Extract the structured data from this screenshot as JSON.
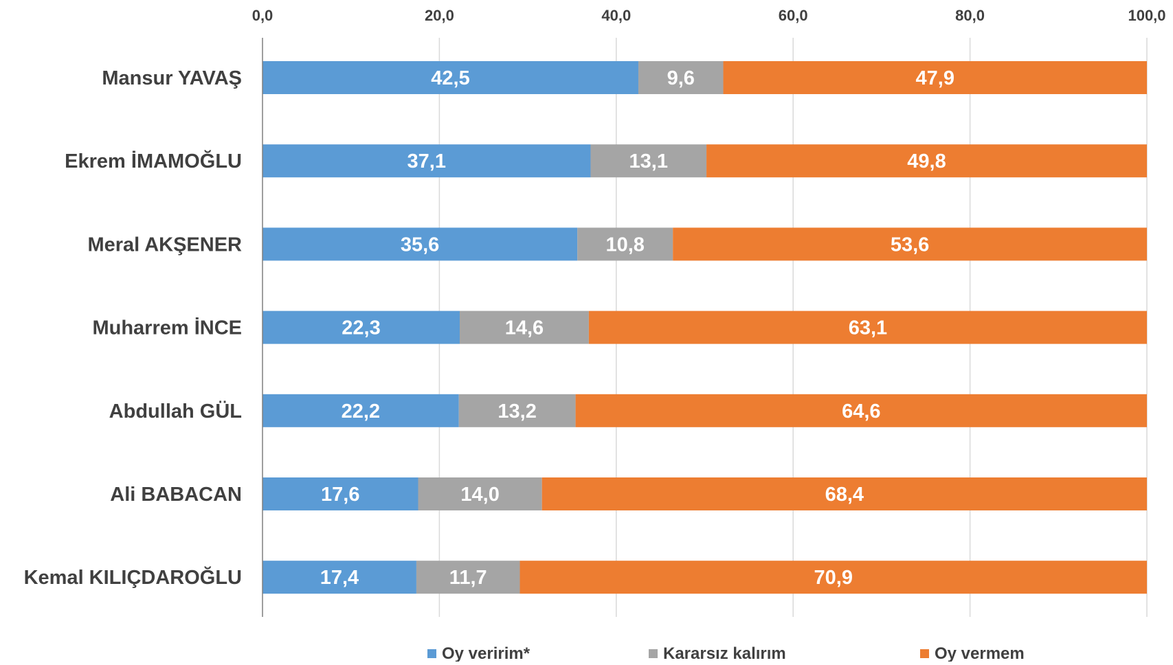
{
  "chart_data": {
    "type": "bar",
    "orientation": "horizontal",
    "stacked": true,
    "xlim": [
      0,
      100
    ],
    "x_ticks": [
      0,
      20,
      40,
      60,
      80,
      100
    ],
    "x_tick_labels": [
      "0,0",
      "20,0",
      "40,0",
      "60,0",
      "80,0",
      "100,0"
    ],
    "x_axis_position": "top",
    "grid": "vertical",
    "legend_position": "bottom",
    "categories": [
      "Mansur YAVAŞ",
      "Ekrem İMAMOĞLU",
      "Meral AKŞENER",
      "Muharrem İNCE",
      "Abdullah GÜL",
      "Ali BABACAN",
      "Kemal KILIÇDAROĞLU"
    ],
    "series": [
      {
        "name": "Oy veririm*",
        "color": "#5B9BD5",
        "values": [
          42.5,
          37.1,
          35.6,
          22.3,
          22.2,
          17.6,
          17.4
        ],
        "labels": [
          "42,5",
          "37,1",
          "35,6",
          "22,3",
          "22,2",
          "17,6",
          "17,4"
        ]
      },
      {
        "name": "Kararsız kalırım",
        "color": "#A5A5A5",
        "values": [
          9.6,
          13.1,
          10.8,
          14.6,
          13.2,
          14.0,
          11.7
        ],
        "labels": [
          "9,6",
          "13,1",
          "10,8",
          "14,6",
          "13,2",
          "14,0",
          "11,7"
        ]
      },
      {
        "name": "Oy vermem",
        "color": "#ED7D31",
        "values": [
          47.9,
          49.8,
          53.6,
          63.1,
          64.6,
          68.4,
          70.9
        ],
        "labels": [
          "47,9",
          "49,8",
          "53,6",
          "63,1",
          "64,6",
          "68,4",
          "70,9"
        ]
      }
    ]
  }
}
